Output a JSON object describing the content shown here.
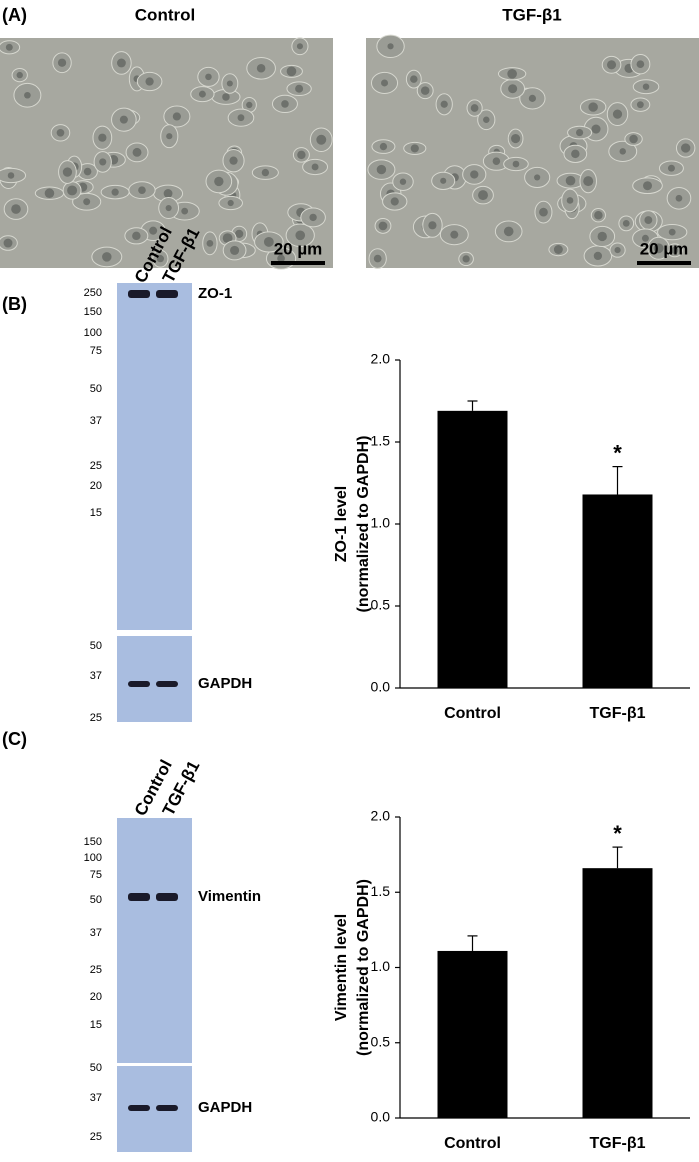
{
  "panel_a": {
    "label": "(A)",
    "images": [
      {
        "title": "Control",
        "scale_bar": "20 µm"
      },
      {
        "title": "TGF-β1",
        "scale_bar": "20 µm"
      }
    ]
  },
  "panel_b": {
    "label": "(B)",
    "lanes": [
      "Control",
      "TGF-β1"
    ],
    "markers_top": [
      250,
      150,
      100,
      75,
      50,
      37,
      25,
      20,
      15
    ],
    "band_top": "ZO-1",
    "markers_bottom": [
      50,
      37,
      25
    ],
    "band_bottom": "GAPDH"
  },
  "panel_c": {
    "label": "(C)",
    "lanes": [
      "Control",
      "TGF-β1"
    ],
    "markers_top": [
      150,
      100,
      75,
      50,
      37,
      25,
      20,
      15
    ],
    "band_top": "Vimentin",
    "markers_bottom": [
      50,
      37,
      25
    ],
    "band_bottom": "GAPDH"
  },
  "chart_data": [
    {
      "type": "bar",
      "ylabel": [
        "ZO-1 level",
        "(normalized to GAPDH)"
      ],
      "categories": [
        "Control",
        "TGF-β1"
      ],
      "values": [
        1.69,
        1.18
      ],
      "errors": [
        0.06,
        0.17
      ],
      "significance": [
        null,
        "*"
      ],
      "color": "#000000",
      "ylim": [
        0,
        2
      ],
      "yticks": [
        {
          "value": 0,
          "label": "0.0"
        },
        {
          "value": 0.5,
          "label": "0.5"
        },
        {
          "value": 1,
          "label": "1.0"
        },
        {
          "value": 1.5,
          "label": "1.5"
        },
        {
          "value": 2,
          "label": "2.0"
        }
      ]
    },
    {
      "type": "bar",
      "ylabel": [
        "Vimentin level",
        "(normalized to GAPDH)"
      ],
      "categories": [
        "Control",
        "TGF-β1"
      ],
      "values": [
        1.11,
        1.66
      ],
      "errors": [
        0.1,
        0.14
      ],
      "significance": [
        null,
        "*"
      ],
      "color": "#000000",
      "ylim": [
        0,
        2
      ],
      "yticks": [
        {
          "value": 0,
          "label": "0.0"
        },
        {
          "value": 0.5,
          "label": "0.5"
        },
        {
          "value": 1,
          "label": "1.0"
        },
        {
          "value": 1.5,
          "label": "1.5"
        },
        {
          "value": 2,
          "label": "2.0"
        }
      ]
    }
  ]
}
